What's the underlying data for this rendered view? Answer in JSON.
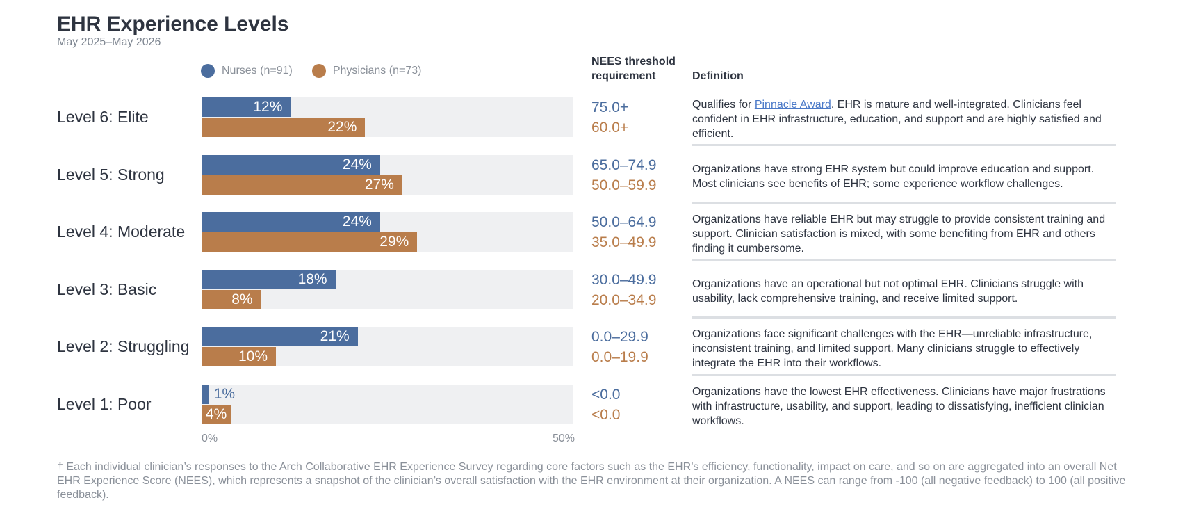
{
  "title": "EHR Experience Levels",
  "subtitle": "May 2025–May 2026",
  "colors": {
    "nurses": "#4b6d9e",
    "physicians": "#b97d4b"
  },
  "headers": {
    "threshold_line1": "NEES threshold",
    "threshold_line2": "requirement",
    "definition": "Definition"
  },
  "definitions": {
    "elite_prefix": "Qualifies for ",
    "elite_link": "Pinnacle Award",
    "elite_suffix": ". EHR is mature and well-integrated. Clinicians feel confident in EHR infrastructure, education, and support and are highly satisfied and efficient.",
    "strong": "Organizations have strong EHR system but could improve education and support. Most clinicians see benefits of EHR; some experience workflow challenges.",
    "moderate": "Organizations have reliable EHR but may struggle to provide consistent training and support. Clinician satisfaction is mixed, with some benefiting from EHR and others finding it cumbersome.",
    "basic": "Organizations have an operational but not optimal EHR. Clinicians struggle with usability, lack comprehensive training, and receive limited support.",
    "struggling": "Organizations face significant challenges with the EHR—unreliable infrastructure, inconsistent training, and limited support. Many clinicians struggle to effectively integrate the EHR into their workflows.",
    "poor": "Organizations have the lowest EHR effectiveness. Clinicians have major frustrations with infrastructure, usability, and support, leading to dissatisfying, inefficient clinician workflows."
  },
  "footnote": "† Each individual clinician’s responses to the Arch Collaborative EHR Experience Survey regarding core factors such as the EHR’s efficiency, functionality, impact on care, and so on are aggregated into an overall Net EHR Experience Score (NEES), which represents a snapshot of the clinician’s overall satisfaction with the EHR environment at their organization. A NEES can range from -100 (all negative feedback) to 100 (all positive feedback).",
  "chart_data": {
    "type": "bar",
    "orientation": "horizontal",
    "categories": [
      "Level 6: Elite",
      "Level 5: Strong",
      "Level 4: Moderate",
      "Level 3: Basic",
      "Level 2: Struggling",
      "Level 1: Poor"
    ],
    "series": [
      {
        "name": "Nurses (n=91)",
        "values": [
          12,
          24,
          24,
          18,
          21,
          1
        ],
        "labels": [
          "12%",
          "24%",
          "24%",
          "18%",
          "21%",
          "1%"
        ],
        "thresholds": [
          "75.0+",
          "65.0–74.9",
          "50.0–64.9",
          "30.0–49.9",
          "0.0–29.9",
          "<0.0"
        ]
      },
      {
        "name": "Physicians (n=73)",
        "values": [
          22,
          27,
          29,
          8,
          10,
          4
        ],
        "labels": [
          "22%",
          "27%",
          "29%",
          "8%",
          "10%",
          "4%"
        ],
        "thresholds": [
          "60.0+",
          "50.0–59.9",
          "35.0–49.9",
          "20.0–34.9",
          "0.0–19.9",
          "<0.0"
        ]
      }
    ],
    "xlim": [
      0,
      50
    ],
    "xticks": [
      "0%",
      "50%"
    ],
    "legend": "top-left"
  }
}
